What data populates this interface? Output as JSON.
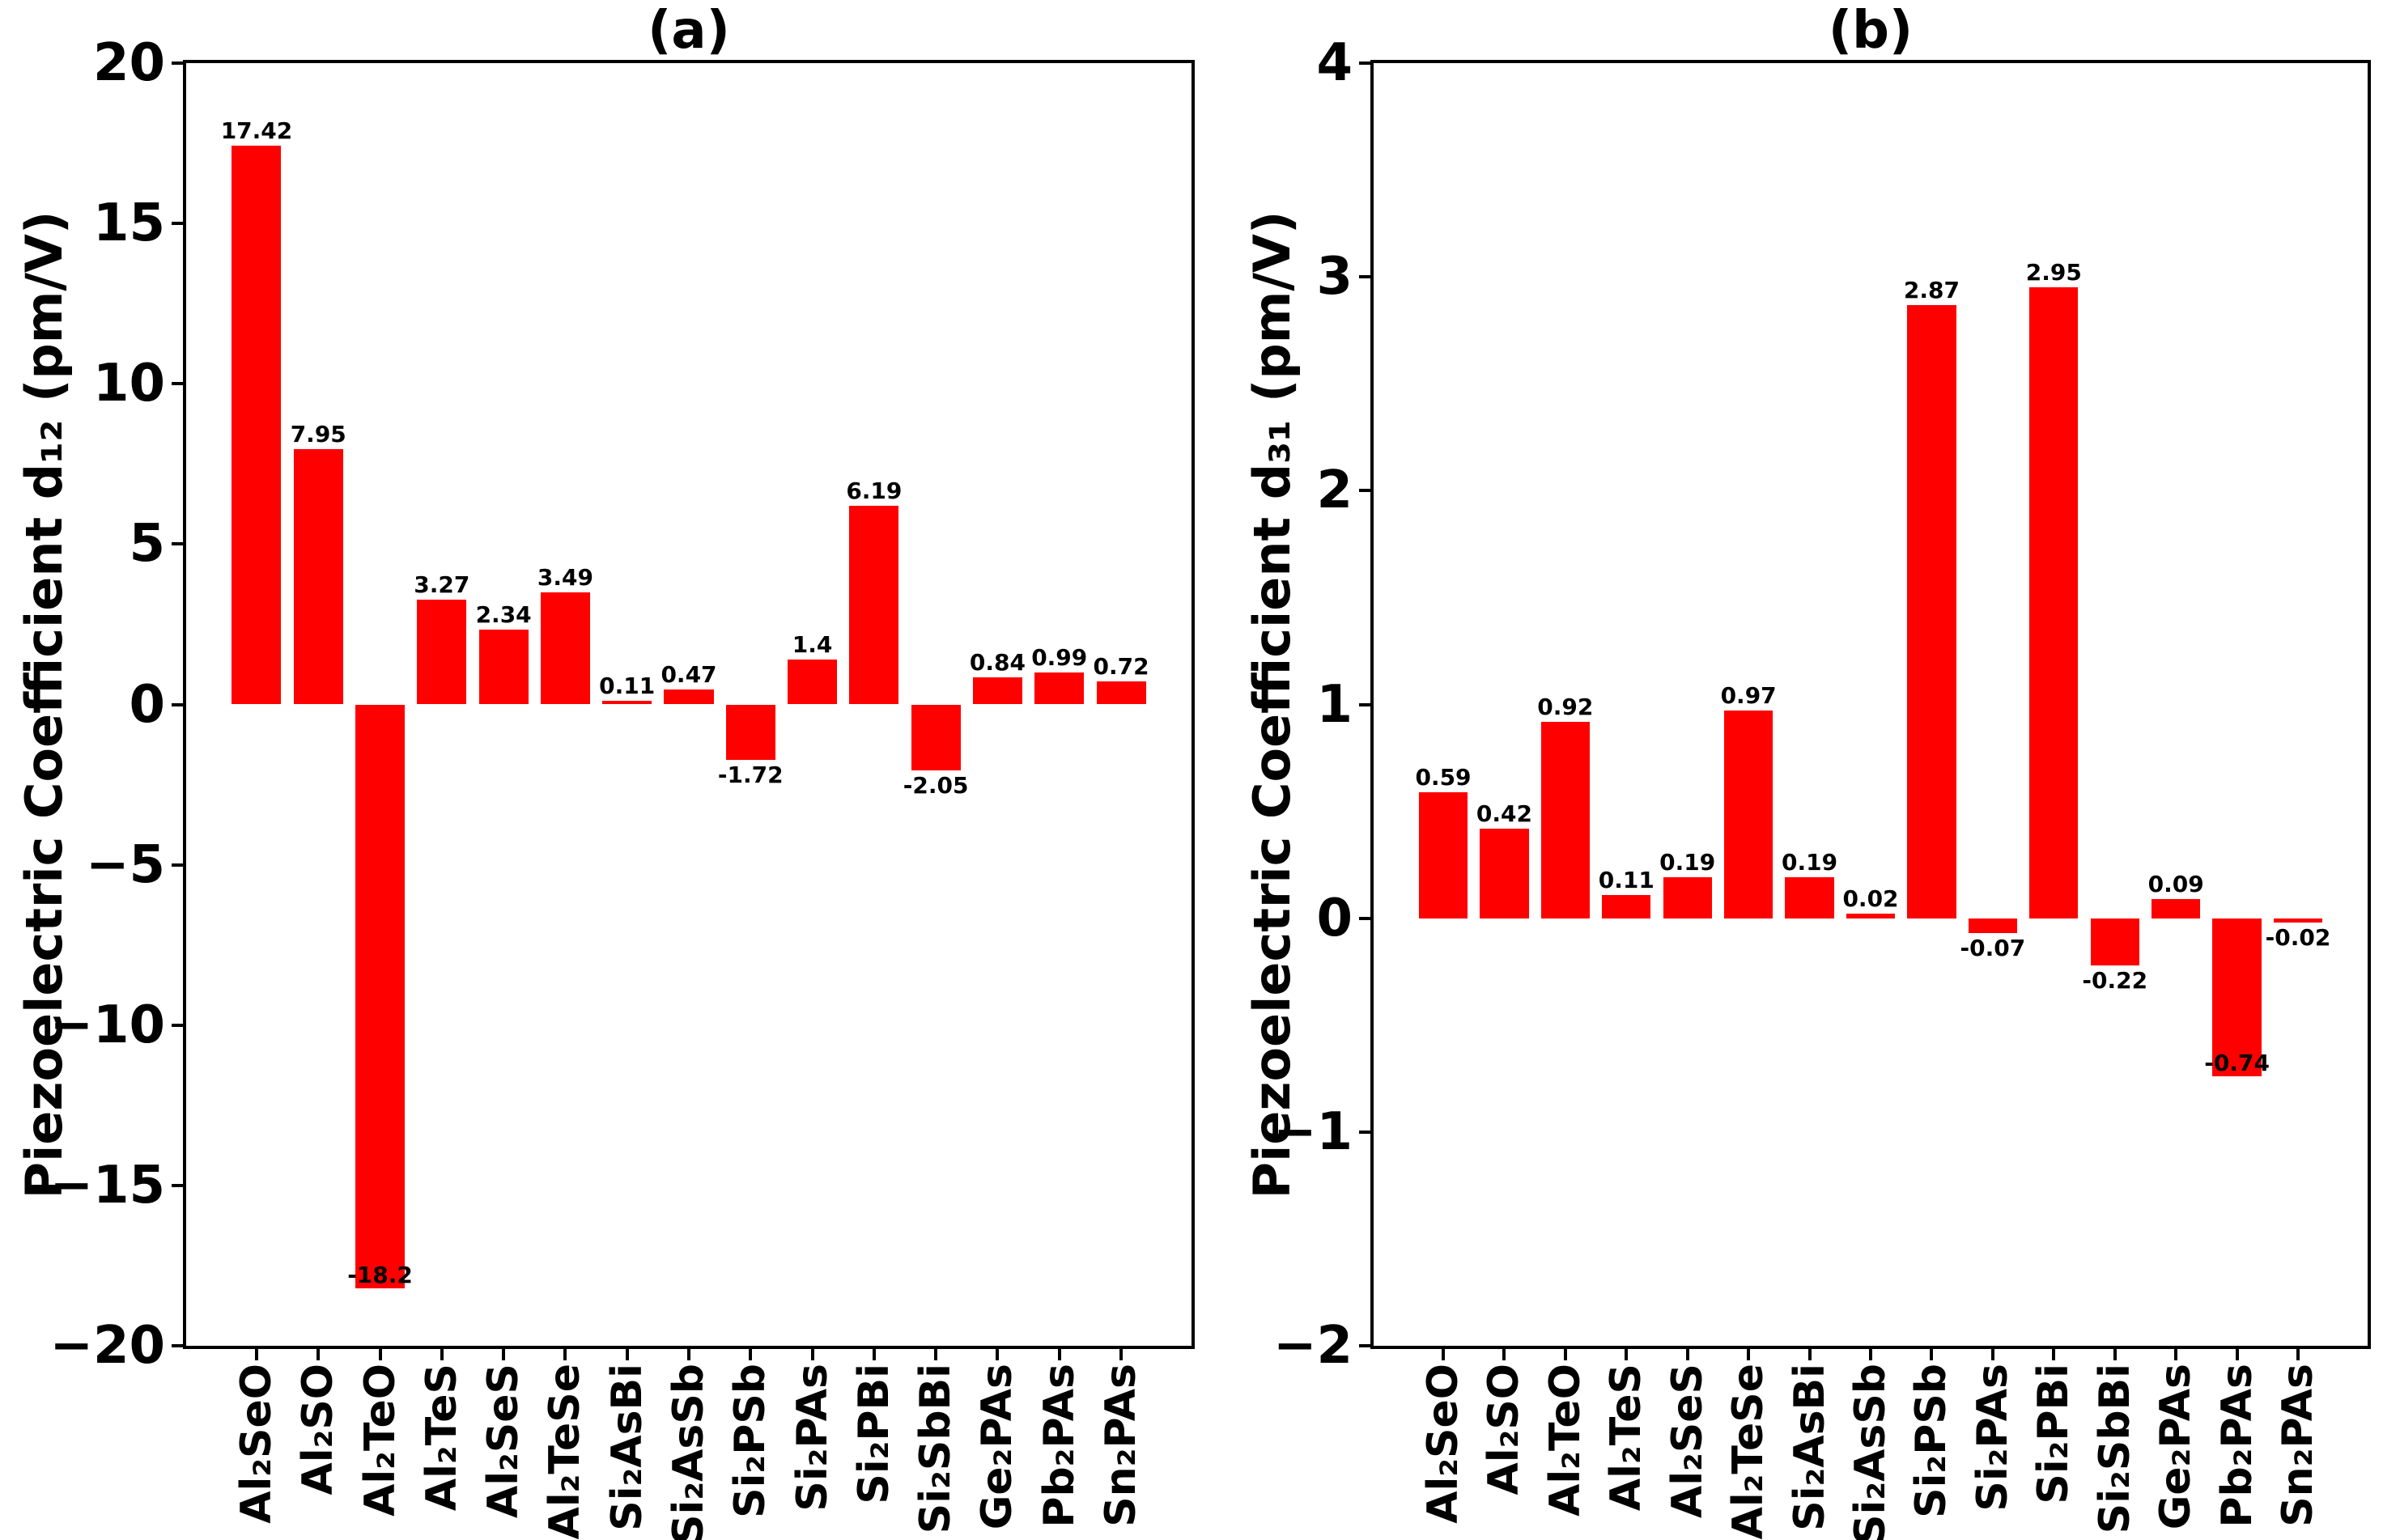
{
  "figure": {
    "background": "#ffffff",
    "axis_color": "#000000",
    "bar_color": "#ff0000"
  },
  "chart_data": [
    {
      "type": "bar",
      "title": "(a)",
      "ylabel": "Piezoelectric Coefficient d₁₂ (pm/V)",
      "ylim": [
        -20,
        20
      ],
      "yticks": [
        20,
        15,
        10,
        5,
        0,
        -5,
        -10,
        -15,
        -20
      ],
      "grid": false,
      "legend": null,
      "bar_color": "#ff0000",
      "categories": [
        "Al₂SeO",
        "Al₂SO",
        "Al₂TeO",
        "Al₂TeS",
        "Al₂SeS",
        "Al₂TeSe",
        "Si₂AsBi",
        "Si₂AsSb",
        "Si₂PSb",
        "Si₂PAs",
        "Si₂PBi",
        "Si₂SbBi",
        "Ge₂PAs",
        "Pb₂PAs",
        "Sn₂PAs"
      ],
      "values": [
        17.42,
        7.95,
        -18.2,
        3.27,
        2.34,
        3.49,
        0.11,
        0.47,
        -1.72,
        1.4,
        6.19,
        -2.05,
        0.84,
        0.99,
        0.72
      ],
      "value_labels": [
        "17.42",
        "7.95",
        "-18.2",
        "3.27",
        "2.34",
        "3.49",
        "0.11",
        "0.47",
        "-1.72",
        "1.4",
        "6.19",
        "-2.05",
        "0.84",
        "0.99",
        "0.72"
      ]
    },
    {
      "type": "bar",
      "title": "(b)",
      "ylabel": "Piezoelectric Coefficient d₃₁ (pm/V)",
      "ylim": [
        -2,
        4
      ],
      "yticks": [
        4,
        3,
        2,
        1,
        0,
        -1,
        -2
      ],
      "grid": false,
      "legend": null,
      "bar_color": "#ff0000",
      "categories": [
        "Al₂SeO",
        "Al₂SO",
        "Al₂TeO",
        "Al₂TeS",
        "Al₂SeS",
        "Al₂TeSe",
        "Si₂AsBi",
        "Si₂AsSb",
        "Si₂PSb",
        "Si₂PAs",
        "Si₂PBi",
        "Si₂SbBi",
        "Ge₂PAs",
        "Pb₂PAs",
        "Sn₂PAs"
      ],
      "values": [
        0.59,
        0.42,
        0.92,
        0.11,
        0.19,
        0.97,
        0.19,
        0.02,
        2.87,
        -0.07,
        2.95,
        -0.22,
        0.09,
        -0.74,
        -0.02
      ],
      "value_labels": [
        "0.59",
        "0.42",
        "0.92",
        "0.11",
        "0.19",
        "0.97",
        "0.19",
        "0.02",
        "2.87",
        "-0.07",
        "2.95",
        "-0.22",
        "0.09",
        "-0.74",
        "-0.02"
      ]
    }
  ]
}
